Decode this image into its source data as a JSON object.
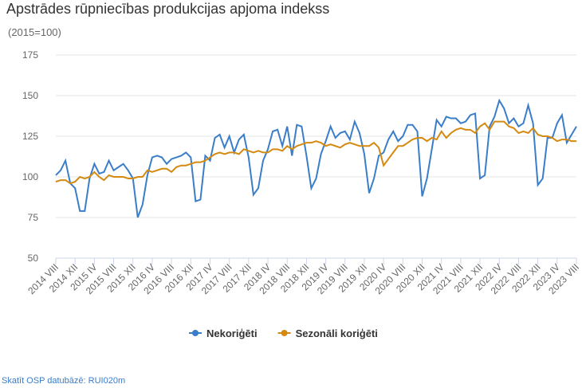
{
  "chart_data": {
    "type": "line",
    "title": "Apstrādes rūpniecības produkcijas apjoma indekss",
    "subtitle": "(2015=100)",
    "categories": [
      "2014 VIII",
      null,
      null,
      null,
      "2014 XII",
      null,
      null,
      null,
      "2015 IV",
      null,
      null,
      null,
      "2015 VIII",
      null,
      null,
      null,
      "2015 XII",
      null,
      null,
      null,
      "2016 IV",
      null,
      null,
      null,
      "2016 VIII",
      null,
      null,
      null,
      "2016 XII",
      null,
      null,
      null,
      "2017 IV",
      null,
      null,
      null,
      "2017 VIII",
      null,
      null,
      null,
      "2017 XII",
      null,
      null,
      null,
      "2018 IV",
      null,
      null,
      null,
      "2018 VIII",
      null,
      null,
      null,
      "2018 XII",
      null,
      null,
      null,
      "2019 IV",
      null,
      null,
      null,
      "2019 VIII",
      null,
      null,
      null,
      "2019 XII",
      null,
      null,
      null,
      "2020 IV",
      null,
      null,
      null,
      "2020 VIII",
      null,
      null,
      null,
      "2020 XII",
      null,
      null,
      null,
      "2021 IV",
      null,
      null,
      null,
      "2021 VIII",
      null,
      null,
      null,
      "2021 XII",
      null,
      null,
      null,
      "2022 IV",
      null,
      null,
      null,
      "2022 VIII",
      null,
      null,
      null,
      "2022 XII",
      null,
      null,
      null,
      "2023 IV",
      null,
      null,
      null,
      "2023 VIII"
    ],
    "series": [
      {
        "name": "Nekoriģēti",
        "color": "#3a7dc9",
        "values": [
          101,
          104,
          110,
          96,
          93,
          79,
          79,
          99,
          108,
          102,
          103,
          110,
          104,
          106,
          108,
          104,
          99,
          75,
          83,
          101,
          112,
          113,
          112,
          108,
          111,
          112,
          113,
          115,
          112,
          85,
          86,
          113,
          110,
          124,
          126,
          118,
          125,
          115,
          123,
          126,
          112,
          89,
          93,
          110,
          117,
          128,
          129,
          119,
          131,
          113,
          132,
          131,
          113,
          93,
          99,
          114,
          122,
          131,
          124,
          127,
          128,
          123,
          134,
          127,
          114,
          90,
          99,
          113,
          115,
          123,
          128,
          122,
          125,
          132,
          132,
          128,
          88,
          99,
          117,
          135,
          131,
          137,
          136,
          136,
          133,
          134,
          138,
          139,
          99,
          101,
          131,
          137,
          147,
          142,
          133,
          136,
          131,
          133,
          144,
          133,
          95,
          99,
          124,
          124,
          133,
          138,
          121,
          126,
          131
        ]
      },
      {
        "name": "Sezonāli koriģēti",
        "color": "#d48a10",
        "values": [
          97,
          98,
          98,
          96,
          97,
          100,
          99,
          100,
          103,
          100,
          98,
          101,
          100,
          100,
          100,
          99,
          99,
          100,
          100,
          104,
          103,
          104,
          105,
          105,
          103,
          106,
          107,
          107,
          108,
          109,
          109,
          110,
          112,
          114,
          115,
          114,
          115,
          115,
          114,
          117,
          116,
          115,
          116,
          115,
          115,
          117,
          117,
          116,
          119,
          117,
          119,
          120,
          121,
          121,
          122,
          121,
          119,
          120,
          119,
          118,
          120,
          121,
          120,
          119,
          119,
          119,
          121,
          118,
          107,
          111,
          115,
          119,
          119,
          121,
          123,
          124,
          124,
          122,
          124,
          123,
          128,
          124,
          127,
          129,
          130,
          129,
          129,
          127,
          131,
          133,
          129,
          134,
          134,
          134,
          131,
          130,
          127,
          128,
          127,
          130,
          126,
          125,
          125,
          124,
          122,
          123,
          123,
          122,
          122
        ]
      }
    ],
    "ylim": [
      50,
      175
    ],
    "yticks": [
      50,
      75,
      100,
      125,
      150,
      175
    ],
    "grid": true,
    "legend": "bottom",
    "source": "Skatīt OSP datubāzē: RUI020m"
  }
}
